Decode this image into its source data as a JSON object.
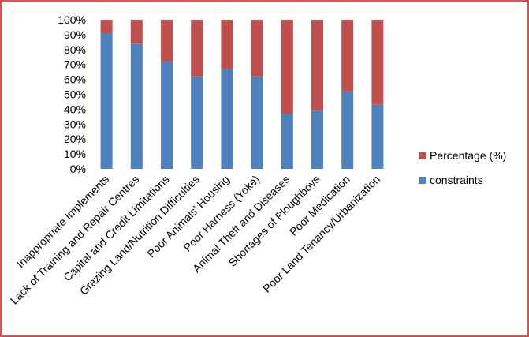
{
  "chart_data": {
    "type": "bar",
    "stacked": true,
    "percent_stacked": true,
    "categories": [
      "Inappropriate Implements",
      "Lack of Training and Repair Centres",
      "Capital and Credit Limitations",
      "Grazing Land/Nutrition Difficulties",
      "Poor Animals’ Housing",
      "Poor Harness (Yoke)",
      "Animal Theft and Diseases",
      "Shortages of Ploughboys",
      "Poor Medication",
      "Poor Land Tenancy/Urbanization"
    ],
    "series": [
      {
        "name": "constraints",
        "color": "#4f81bd",
        "values": [
          91,
          84,
          72,
          62,
          67,
          62,
          37,
          39,
          52,
          43
        ]
      },
      {
        "name": "Percentage (%)",
        "color": "#c0504d",
        "values": [
          9,
          16,
          28,
          38,
          33,
          38,
          63,
          61,
          48,
          57
        ]
      }
    ],
    "y_ticks": [
      "0%",
      "10%",
      "20%",
      "30%",
      "40%",
      "50%",
      "60%",
      "70%",
      "80%",
      "90%",
      "100%"
    ],
    "ylim": [
      0,
      100
    ],
    "grid": false,
    "legend_position": "right",
    "frame_color": "#d9534f"
  }
}
